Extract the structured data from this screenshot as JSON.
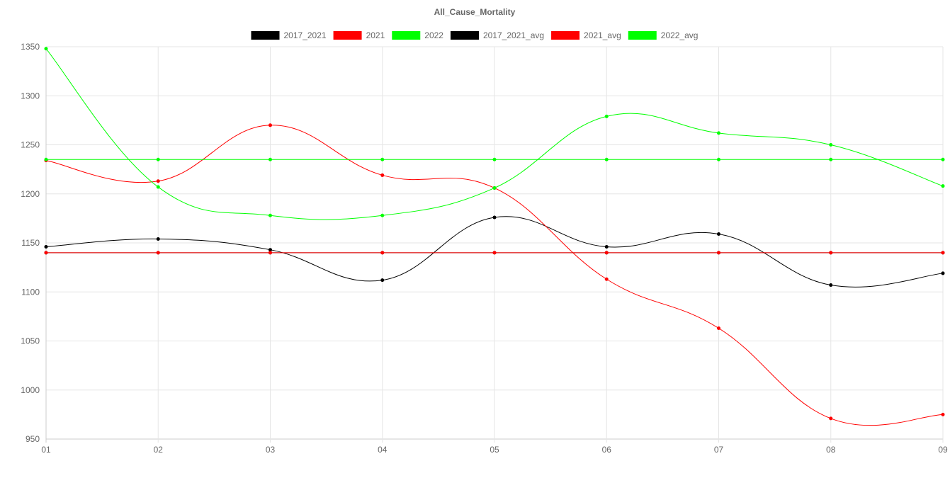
{
  "chart_data": {
    "type": "line",
    "title": "All_Cause_Mortality",
    "xlabel": "",
    "ylabel": "",
    "categories": [
      "01",
      "02",
      "03",
      "04",
      "05",
      "06",
      "07",
      "08",
      "09"
    ],
    "ylim": [
      950,
      1350
    ],
    "yticks": [
      950,
      1000,
      1050,
      1100,
      1150,
      1200,
      1250,
      1300,
      1350
    ],
    "grid": true,
    "legend_position": "top-center",
    "series": [
      {
        "name": "2017_2021",
        "color": "#000000",
        "values": [
          1146,
          1154,
          1143,
          1112,
          1176,
          1146,
          1159,
          1107,
          1119
        ]
      },
      {
        "name": "2021",
        "color": "#ff0000",
        "values": [
          1234,
          1213,
          1270,
          1219,
          1206,
          1113,
          1063,
          971,
          975
        ]
      },
      {
        "name": "2022",
        "color": "#00ff00",
        "values": [
          1348,
          1207,
          1178,
          1178,
          1206,
          1279,
          1262,
          1250,
          1208
        ]
      },
      {
        "name": "2017_2021_avg",
        "color": "#000000",
        "values": [
          1140,
          1140,
          1140,
          1140,
          1140,
          1140,
          1140,
          1140,
          1140
        ]
      },
      {
        "name": "2021_avg",
        "color": "#ff0000",
        "values": [
          1140,
          1140,
          1140,
          1140,
          1140,
          1140,
          1140,
          1140,
          1140
        ]
      },
      {
        "name": "2022_avg",
        "color": "#00ff00",
        "values": [
          1235,
          1235,
          1235,
          1235,
          1235,
          1235,
          1235,
          1235,
          1235
        ]
      }
    ]
  }
}
